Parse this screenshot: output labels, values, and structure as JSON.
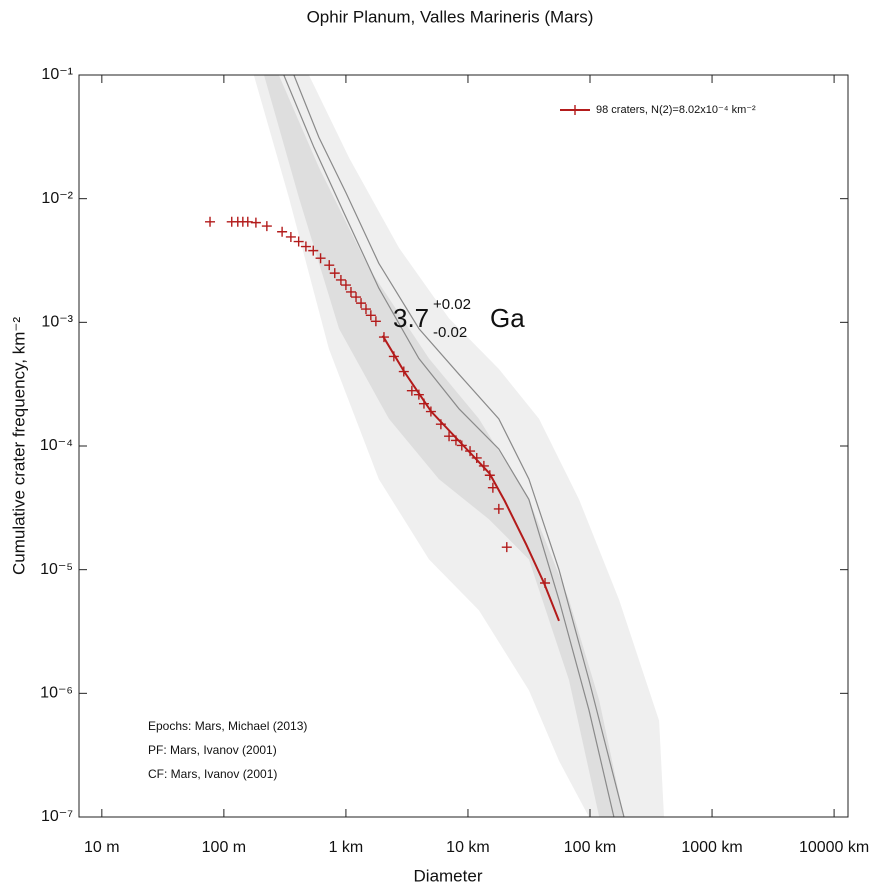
{
  "chart_data": {
    "type": "scatter",
    "title": "Ophir Planum, Valles Marineris (Mars)",
    "x_label": "Diameter",
    "y_label": "Cumulative crater frequency, km⁻²",
    "log_x": true,
    "log_y": true,
    "xlim": [
      0.0065,
      13000
    ],
    "ylim": [
      1e-07,
      0.1
    ],
    "xticks": [
      {
        "value": 0.01,
        "label": "10 m"
      },
      {
        "value": 0.1,
        "label": "100 m"
      },
      {
        "value": 1,
        "label": "1 km"
      },
      {
        "value": 10,
        "label": "10 km"
      },
      {
        "value": 100,
        "label": "100 km"
      },
      {
        "value": 1000,
        "label": "1000 km"
      },
      {
        "value": 10000,
        "label": "10000 km"
      }
    ],
    "yticks": [
      {
        "value": 1e-07,
        "label": "10⁻⁷"
      },
      {
        "value": 1e-06,
        "label": "10⁻⁶"
      },
      {
        "value": 1e-05,
        "label": "10⁻⁵"
      },
      {
        "value": 0.0001,
        "label": "10⁻⁴"
      },
      {
        "value": 0.001,
        "label": "10⁻³"
      },
      {
        "value": 0.01,
        "label": "10⁻²"
      },
      {
        "value": 0.1,
        "label": "10⁻¹"
      }
    ],
    "legend_position": "upper right",
    "series": [
      {
        "name": "98 craters, N(2)=8.02x10⁻⁴ km⁻²",
        "color": "#b31b1b",
        "x": [
          0.077,
          0.116,
          0.13,
          0.143,
          0.157,
          0.183,
          0.225,
          0.3,
          0.354,
          0.41,
          0.47,
          0.54,
          0.62,
          0.73,
          0.81,
          0.91,
          1.0,
          1.1,
          1.21,
          1.33,
          1.46,
          1.6,
          1.76,
          2.05,
          2.47,
          2.98,
          3.47,
          3.96,
          4.36,
          4.97,
          6.0,
          7.0,
          7.97,
          8.9,
          10.4,
          11.8,
          13.5,
          15.1,
          16.0,
          17.9,
          20.8,
          42.8
        ],
        "values": [
          0.0065,
          0.0065,
          0.0065,
          0.0065,
          0.0065,
          0.0064,
          0.006,
          0.0054,
          0.0049,
          0.0045,
          0.0041,
          0.0038,
          0.0033,
          0.0029,
          0.0025,
          0.0022,
          0.002,
          0.00176,
          0.0016,
          0.00143,
          0.00128,
          0.00114,
          0.00102,
          0.00076,
          0.00053,
          0.0004,
          0.00028,
          0.00026,
          0.00022,
          0.00019,
          0.00015,
          0.00012,
          0.000111,
          0.000101,
          9.1e-05,
          8e-05,
          6.9e-05,
          5.8e-05,
          4.6e-05,
          3.1e-05,
          1.52e-05,
          7.8e-06
        ]
      }
    ],
    "fit": {
      "color": "#b31b1b",
      "x": [
        2.0,
        3.0,
        5.0,
        10,
        15,
        20,
        30,
        42,
        55.7
      ],
      "values": [
        0.00078,
        0.0004,
        0.00019,
        9.2e-05,
        6e-05,
        3.6e-05,
        1.6e-05,
        7.8e-06,
        3.85e-06
      ]
    },
    "bands": [
      {
        "color": "#efefef",
        "upper": {
          "x": [
            0.497,
            1.06,
            2.72,
            6.98,
            17.9,
            38.2,
            81.3,
            173,
            368,
            404
          ],
          "values": [
            0.1,
            0.0215,
            0.004,
            0.00108,
            0.00042,
            0.000166,
            3.7e-05,
            5.7e-06,
            6e-07,
            1e-07
          ]
        },
        "lower": {
          "x": [
            0.176,
            0.341,
            0.726,
            1.86,
            4.79,
            12.3,
            31.6,
            55.7,
            98.2
          ],
          "values": [
            0.1,
            0.0102,
            0.00061,
            5.4e-05,
            1.21e-05,
            4.7e-06,
            1.06e-06,
            2.85e-07,
            1e-07
          ]
        }
      },
      {
        "color": "#dedede",
        "upper": {
          "x": [
            0.282,
            0.601,
            1.54,
            4.79,
            12.3,
            31.6,
            67.3,
            119,
            190
          ],
          "values": [
            0.1,
            0.0179,
            0.00275,
            0.00051,
            0.000166,
            3.7e-05,
            5.7e-06,
            8.8e-07,
            1e-07
          ]
        },
        "lower": {
          "x": [
            0.213,
            0.412,
            0.877,
            2.25,
            5.78,
            14.9,
            31.6,
            67.3,
            119
          ],
          "values": [
            0.1,
            0.0102,
            0.00089,
            0.000166,
            5.4e-05,
            2.55e-05,
            1.21e-05,
            1.28e-06,
            1e-07
          ]
        }
      }
    ],
    "curves": [
      {
        "color": "#8a8a8a",
        "x": [
          0.375,
          0.601,
          1,
          1.86,
          3.96,
          8.44,
          17.9,
          31.6,
          55.7,
          98.2,
          190
        ],
        "values": [
          0.1,
          0.0313,
          0.0112,
          0.003,
          0.00089,
          0.00038,
          0.000166,
          5.4e-05,
          1e-05,
          1.28e-06,
          1e-07
        ]
      },
      {
        "color": "#8a8a8a",
        "x": [
          0.31,
          0.547,
          0.963,
          1.86,
          3.96,
          8.44,
          17.9,
          31.6,
          55.7,
          98.2,
          157
        ],
        "values": [
          0.1,
          0.026,
          0.0077,
          0.00189,
          0.00051,
          0.0002,
          9.45e-05,
          3.7e-05,
          5.7e-06,
          7.3e-07,
          1e-07
        ]
      }
    ],
    "age_label": {
      "age": "3.7",
      "plus": "+0.02",
      "minus": "-0.02",
      "unit": "Ga",
      "color": "#b31b1b"
    },
    "notes": [
      "Epochs: Mars, Michael (2013)",
      "PF: Mars, Ivanov (2001)",
      "CF: Mars, Ivanov (2001)"
    ]
  }
}
